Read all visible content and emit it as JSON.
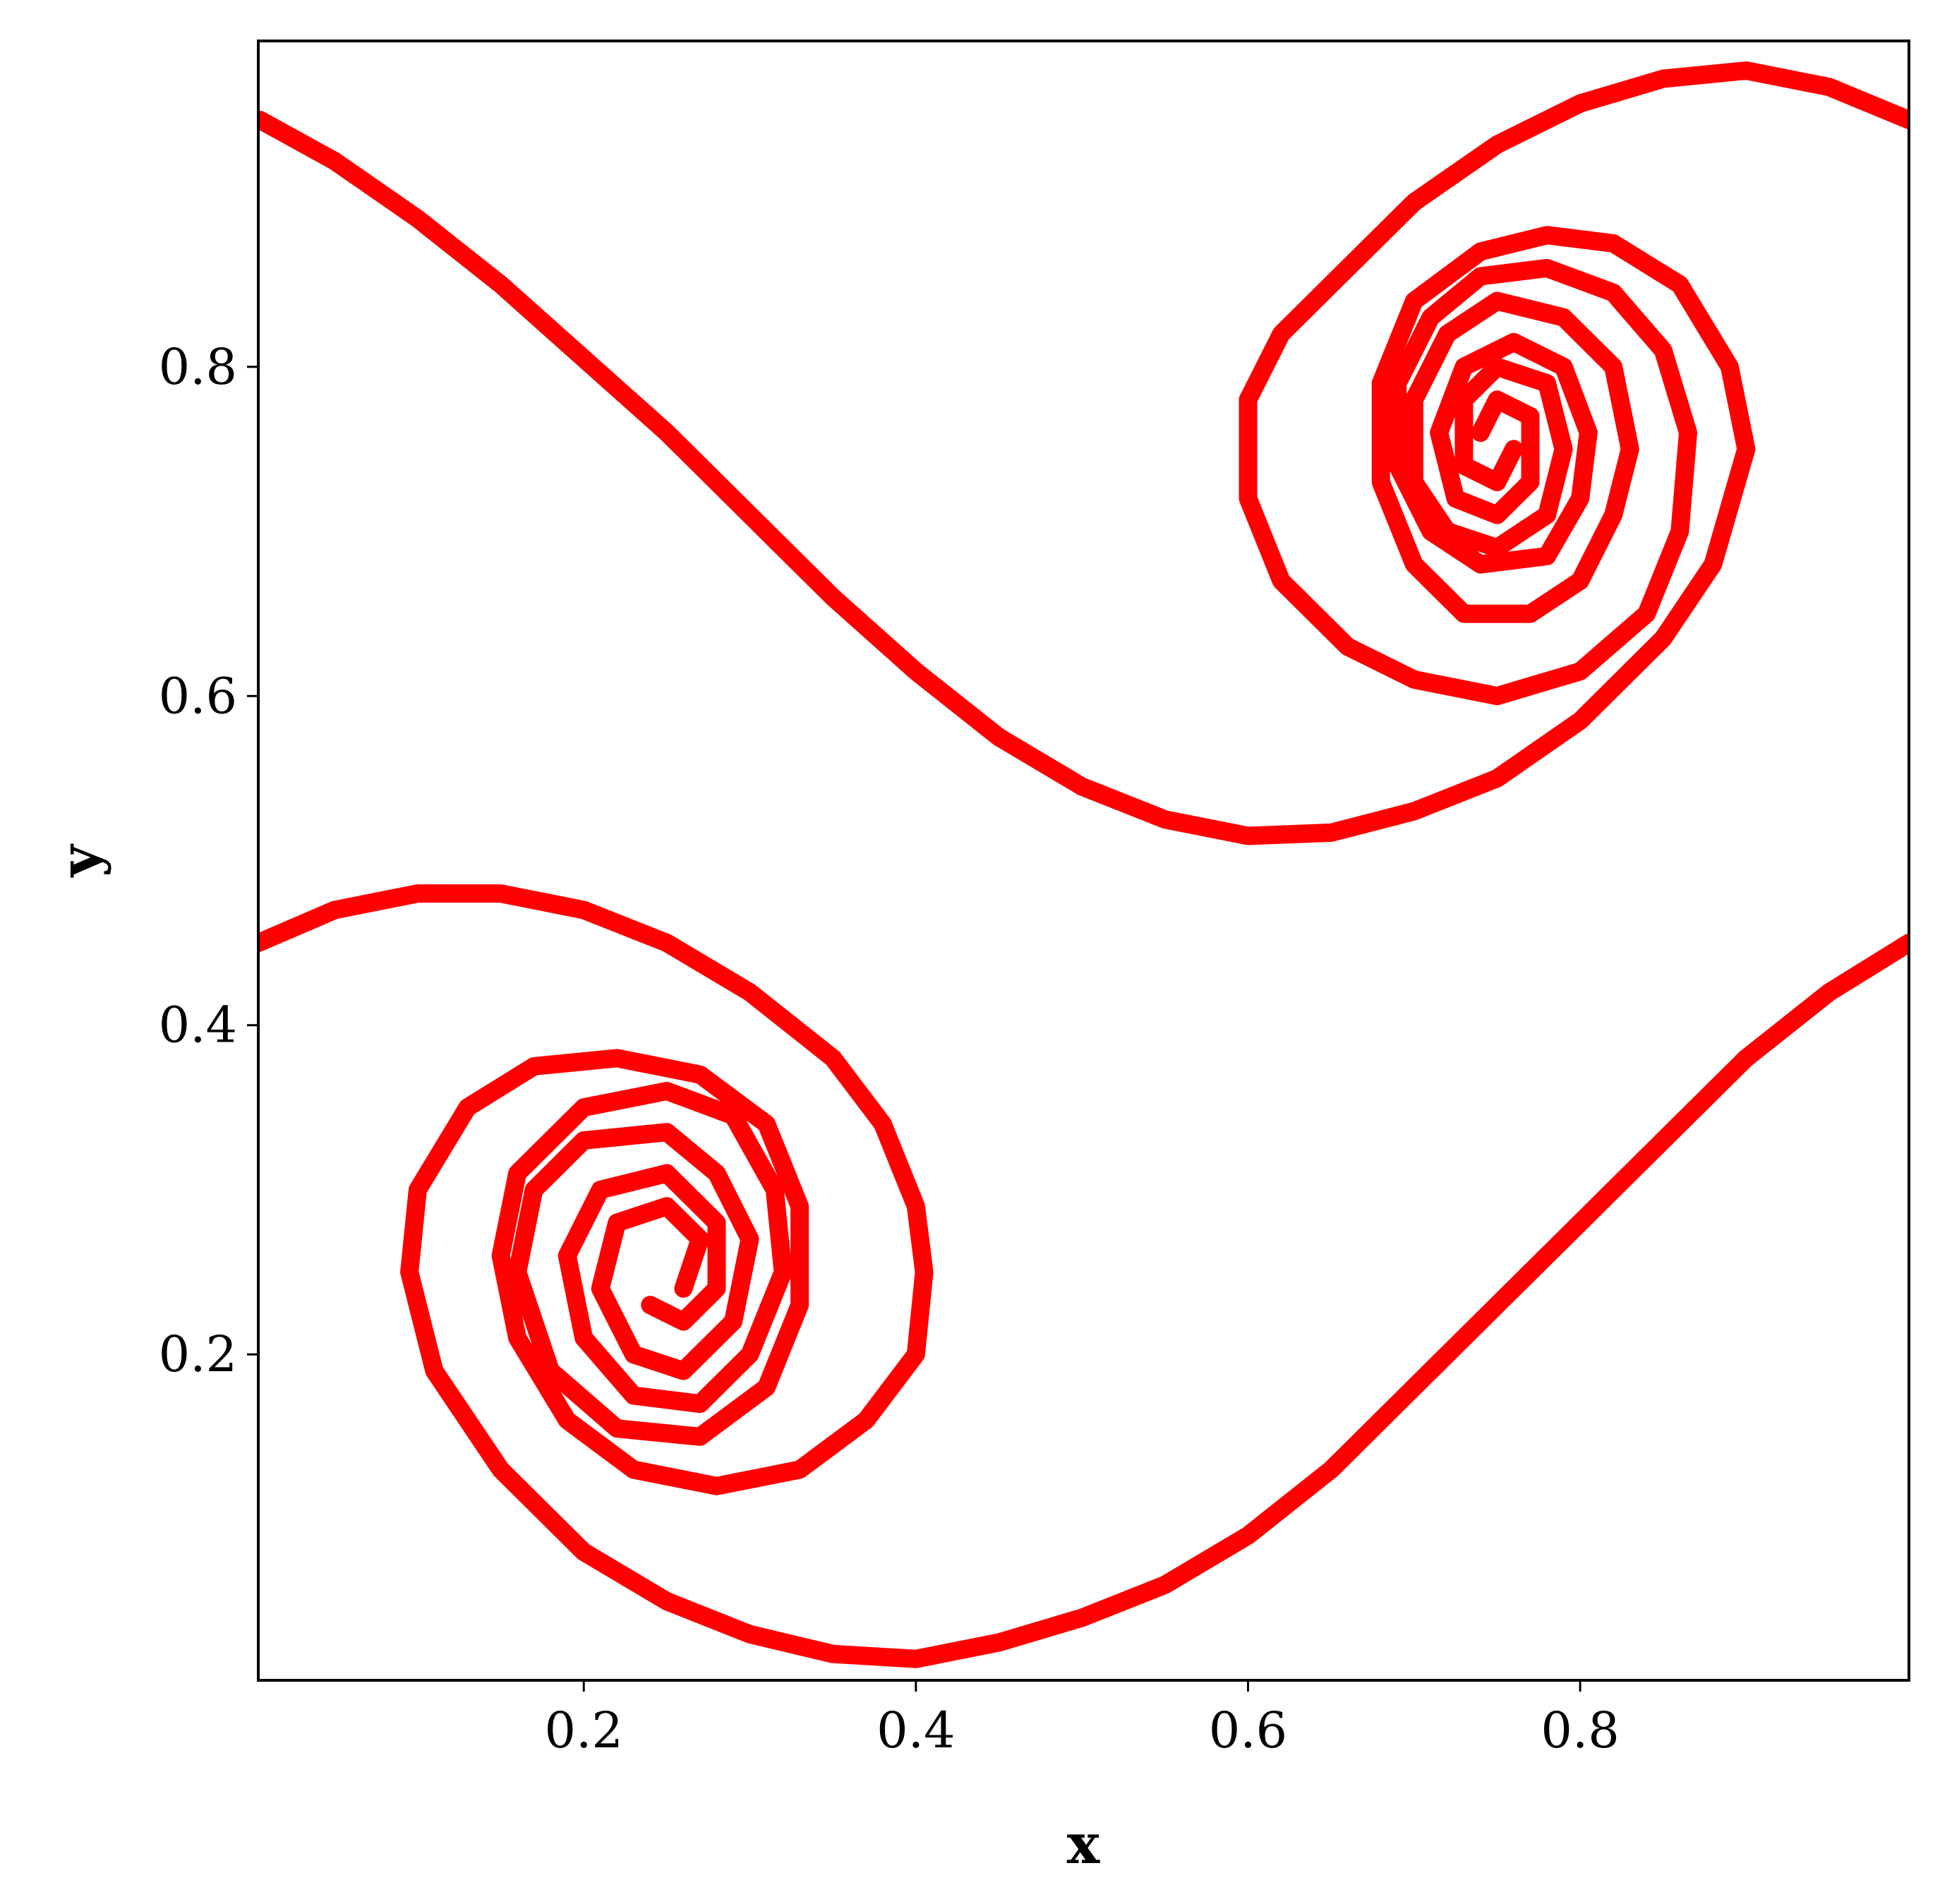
{
  "chart_data": {
    "type": "contour",
    "xlabel": "x",
    "ylabel": "y",
    "xlim": [
      0.004,
      0.998
    ],
    "ylim": [
      0.002,
      0.998
    ],
    "xticks": [
      0.2,
      0.4,
      0.6,
      0.8
    ],
    "yticks": [
      0.2,
      0.4,
      0.6,
      0.8
    ],
    "grid": false,
    "series": [
      {
        "color": "#ff0000",
        "x": [
          0.005,
          0.05,
          0.1,
          0.15,
          0.2,
          0.25,
          0.3,
          0.35,
          0.4,
          0.45,
          0.5,
          0.55,
          0.6,
          0.65,
          0.7,
          0.75,
          0.8,
          0.85,
          0.88,
          0.9,
          0.89,
          0.86,
          0.82,
          0.78,
          0.74,
          0.7,
          0.68,
          0.68,
          0.7,
          0.73,
          0.77,
          0.8,
          0.82,
          0.83,
          0.82,
          0.79,
          0.75,
          0.72,
          0.7,
          0.7,
          0.72,
          0.75,
          0.78,
          0.79,
          0.78,
          0.75,
          0.73,
          0.73,
          0.75,
          0.76
        ],
        "y": [
          0.95,
          0.925,
          0.89,
          0.85,
          0.805,
          0.76,
          0.71,
          0.66,
          0.615,
          0.575,
          0.545,
          0.525,
          0.515,
          0.517,
          0.53,
          0.55,
          0.585,
          0.635,
          0.68,
          0.75,
          0.8,
          0.85,
          0.875,
          0.88,
          0.87,
          0.84,
          0.79,
          0.73,
          0.68,
          0.65,
          0.65,
          0.67,
          0.71,
          0.75,
          0.8,
          0.83,
          0.84,
          0.82,
          0.78,
          0.73,
          0.7,
          0.69,
          0.71,
          0.75,
          0.79,
          0.8,
          0.78,
          0.74,
          0.73,
          0.75
        ]
      },
      {
        "color": "#ff0000",
        "x": [
          0.998,
          0.95,
          0.9,
          0.85,
          0.8,
          0.75,
          0.7,
          0.66,
          0.62,
          0.6,
          0.6,
          0.62,
          0.66,
          0.7,
          0.75,
          0.8,
          0.84,
          0.86,
          0.865,
          0.85,
          0.82,
          0.78,
          0.74,
          0.71,
          0.69,
          0.69,
          0.71,
          0.74,
          0.78,
          0.8,
          0.805,
          0.79,
          0.76,
          0.73,
          0.715,
          0.725,
          0.75,
          0.77,
          0.77,
          0.75,
          0.74
        ],
        "y": [
          0.95,
          0.97,
          0.98,
          0.975,
          0.96,
          0.935,
          0.9,
          0.86,
          0.82,
          0.78,
          0.72,
          0.67,
          0.63,
          0.61,
          0.6,
          0.615,
          0.65,
          0.7,
          0.76,
          0.81,
          0.845,
          0.86,
          0.855,
          0.83,
          0.79,
          0.74,
          0.7,
          0.68,
          0.685,
          0.72,
          0.76,
          0.8,
          0.815,
          0.8,
          0.76,
          0.72,
          0.71,
          0.73,
          0.77,
          0.78,
          0.76
        ]
      },
      {
        "color": "#ff0000",
        "x": [
          0.998,
          0.95,
          0.9,
          0.85,
          0.8,
          0.75,
          0.7,
          0.65,
          0.6,
          0.55,
          0.5,
          0.45,
          0.4,
          0.35,
          0.3,
          0.25,
          0.2,
          0.15,
          0.11,
          0.095,
          0.1,
          0.13,
          0.17,
          0.22,
          0.27,
          0.31,
          0.33,
          0.33,
          0.31,
          0.27,
          0.22,
          0.18,
          0.16,
          0.17,
          0.2,
          0.25,
          0.28,
          0.3,
          0.29,
          0.26,
          0.23,
          0.21,
          0.22,
          0.25,
          0.27,
          0.26
        ],
        "y": [
          0.45,
          0.42,
          0.38,
          0.33,
          0.28,
          0.23,
          0.18,
          0.13,
          0.09,
          0.06,
          0.04,
          0.025,
          0.015,
          0.018,
          0.03,
          0.05,
          0.08,
          0.13,
          0.19,
          0.25,
          0.3,
          0.35,
          0.375,
          0.38,
          0.37,
          0.34,
          0.29,
          0.23,
          0.18,
          0.15,
          0.155,
          0.19,
          0.25,
          0.3,
          0.33,
          0.335,
          0.31,
          0.27,
          0.22,
          0.19,
          0.2,
          0.24,
          0.28,
          0.29,
          0.27,
          0.24
        ]
      },
      {
        "color": "#ff0000",
        "x": [
          0.004,
          0.05,
          0.1,
          0.15,
          0.2,
          0.25,
          0.3,
          0.35,
          0.38,
          0.4,
          0.405,
          0.4,
          0.37,
          0.33,
          0.28,
          0.23,
          0.19,
          0.16,
          0.15,
          0.16,
          0.2,
          0.25,
          0.29,
          0.315,
          0.32,
          0.3,
          0.27,
          0.23,
          0.2,
          0.19,
          0.21,
          0.25,
          0.28,
          0.28,
          0.26,
          0.24
        ],
        "y": [
          0.45,
          0.47,
          0.48,
          0.48,
          0.47,
          0.45,
          0.42,
          0.38,
          0.34,
          0.29,
          0.25,
          0.2,
          0.16,
          0.13,
          0.12,
          0.13,
          0.16,
          0.21,
          0.26,
          0.31,
          0.35,
          0.36,
          0.345,
          0.3,
          0.25,
          0.2,
          0.17,
          0.175,
          0.21,
          0.26,
          0.3,
          0.31,
          0.28,
          0.24,
          0.22,
          0.23
        ]
      }
    ]
  }
}
